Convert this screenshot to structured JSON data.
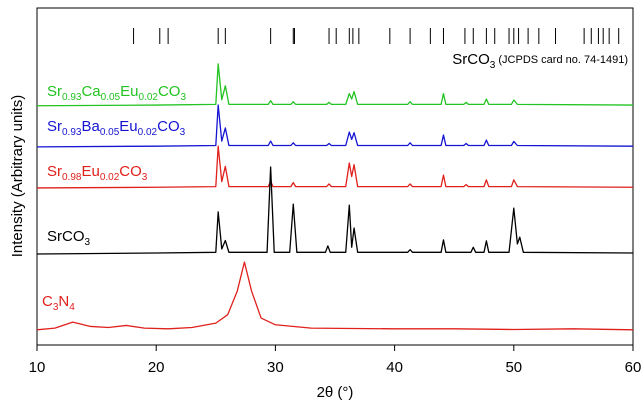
{
  "chart_data": {
    "type": "line",
    "xlabel": "2θ (°)",
    "ylabel": "Intensity (Arbitrary units)",
    "xlim": [
      10,
      60
    ],
    "xticks": [
      10,
      20,
      30,
      40,
      50,
      60
    ],
    "ylim": [
      0,
      100
    ],
    "reference_label": "SrCO3 (JCPDS card no. 74-1491)",
    "reference_peaks": [
      18.1,
      20.3,
      21.0,
      25.2,
      25.8,
      29.6,
      31.5,
      31.6,
      34.5,
      35.1,
      36.2,
      36.5,
      37.0,
      39.6,
      41.3,
      43.0,
      44.1,
      45.9,
      46.6,
      47.7,
      48.4,
      49.6,
      50.0,
      50.4,
      51.2,
      52.1,
      53.5,
      55.9,
      56.5,
      57.1,
      57.5,
      58.0,
      58.8
    ],
    "series": [
      {
        "name": "Sr0.93Ca0.05Eu0.02CO3",
        "color": "#22c322",
        "x": [
          10,
          20,
          25,
          25.2,
          25.5,
          25.8,
          26.1,
          29.4,
          29.6,
          29.8,
          31.3,
          31.5,
          31.7,
          34.3,
          34.5,
          34.7,
          35.9,
          36.2,
          36.4,
          36.6,
          36.9,
          41.1,
          41.3,
          41.5,
          43.9,
          44.1,
          44.3,
          45.8,
          46.0,
          46.2,
          47.5,
          47.7,
          47.9,
          49.8,
          50.0,
          50.3,
          60
        ],
        "values": [
          71,
          71.2,
          71.4,
          83.4,
          72.8,
          76.9,
          71.4,
          71.4,
          72.5,
          71.4,
          71.4,
          72.2,
          71.4,
          71.4,
          72,
          71.4,
          71.4,
          74.6,
          73,
          75.2,
          71.4,
          71.4,
          72.2,
          71.4,
          71.4,
          74.6,
          71.4,
          71.4,
          72,
          71.4,
          71.4,
          73,
          71.4,
          71.4,
          72.7,
          71.4,
          71.2
        ]
      },
      {
        "name": "Sr0.93Ba0.05Eu0.02CO3",
        "color": "#1414d2",
        "x": [
          10,
          20,
          25,
          25.2,
          25.5,
          25.8,
          26.1,
          29.4,
          29.6,
          29.8,
          31.3,
          31.5,
          31.7,
          34.3,
          34.5,
          34.7,
          35.9,
          36.2,
          36.4,
          36.6,
          36.9,
          41.1,
          41.3,
          41.5,
          43.9,
          44.1,
          44.3,
          45.8,
          46.0,
          46.2,
          47.5,
          47.7,
          47.9,
          49.8,
          50.0,
          50.3,
          60
        ],
        "values": [
          58.8,
          59,
          59.2,
          71.2,
          60.5,
          64.4,
          59.2,
          59.2,
          60.5,
          59.2,
          59.2,
          60,
          59.2,
          59.2,
          59.8,
          59.2,
          59.2,
          63.2,
          61,
          63,
          59.2,
          59.2,
          60,
          59.2,
          59.2,
          62.3,
          59.2,
          59.2,
          59.8,
          59.2,
          59.2,
          60.8,
          59.2,
          59.2,
          60.4,
          59.2,
          59
        ]
      },
      {
        "name": "Sr0.98Eu0.02CO3",
        "color": "#e0201b",
        "x": [
          10,
          20,
          25,
          25.2,
          25.5,
          25.8,
          26.1,
          29.4,
          29.6,
          29.8,
          31.3,
          31.5,
          31.7,
          34.3,
          34.5,
          34.7,
          35.9,
          36.2,
          36.4,
          36.6,
          36.9,
          41.1,
          41.3,
          41.5,
          43.9,
          44.1,
          44.3,
          45.8,
          46.0,
          46.2,
          47.5,
          47.7,
          47.9,
          49.8,
          50.0,
          50.3,
          60
        ],
        "values": [
          46.6,
          46.8,
          47,
          59,
          48.5,
          53,
          47,
          47,
          48.6,
          47,
          47,
          48.2,
          47,
          47,
          47.8,
          47,
          47,
          54,
          50,
          53.5,
          47,
          47,
          47.8,
          47,
          47,
          50.4,
          47,
          47,
          47.6,
          47,
          47,
          49,
          47,
          47,
          49,
          47,
          46.8
        ]
      },
      {
        "name": "SrCO3",
        "color": "#000000",
        "x": [
          10,
          20,
          25,
          25.2,
          25.5,
          25.8,
          26.1,
          29.3,
          29.6,
          29.9,
          31.2,
          31.5,
          31.8,
          34.2,
          34.4,
          34.6,
          35.9,
          36.2,
          36.4,
          36.6,
          36.9,
          41.1,
          41.3,
          41.5,
          43.9,
          44.1,
          44.3,
          46.4,
          46.6,
          46.8,
          47.5,
          47.7,
          47.9,
          49.6,
          50.0,
          50.3,
          50.5,
          50.8,
          60
        ],
        "values": [
          27,
          27.3,
          27.5,
          39.5,
          28.5,
          31,
          27.5,
          27.5,
          52.8,
          27.5,
          27.5,
          41.8,
          27.5,
          27.5,
          29.4,
          27.5,
          27.5,
          41.5,
          29,
          34.7,
          27.5,
          27.5,
          28.3,
          27.5,
          27.5,
          31.2,
          27.5,
          27.5,
          29,
          27.5,
          27.5,
          30.9,
          27.5,
          27.5,
          40.6,
          30,
          32,
          27.5,
          27.3
        ]
      },
      {
        "name": "C3N4",
        "color": "#e0201b",
        "x": [
          10,
          11.5,
          13,
          14.5,
          16,
          17.5,
          19,
          21,
          23,
          25,
          26,
          26.8,
          27.4,
          28,
          28.8,
          30,
          33,
          40,
          45,
          50,
          55,
          60
        ],
        "values": [
          4.5,
          5,
          6.8,
          5.5,
          5.2,
          5.8,
          5,
          4.8,
          5.2,
          6.5,
          9,
          16,
          24.6,
          16,
          8,
          6,
          5,
          4.8,
          4.8,
          4.6,
          4.8,
          4.5
        ]
      }
    ]
  }
}
